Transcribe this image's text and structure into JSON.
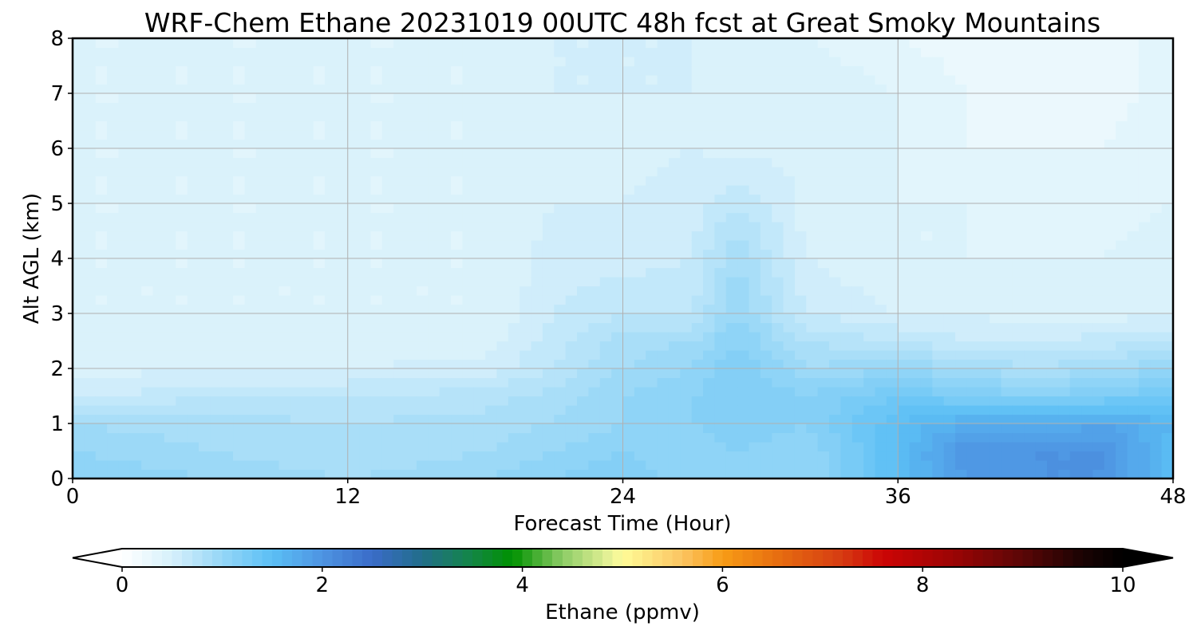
{
  "chart_data": {
    "type": "heatmap",
    "title": "WRF-Chem Ethane  20231019 00UTC 48h fcst at Great Smoky Mountains",
    "xlabel": "Forecast Time (Hour)",
    "ylabel": "Alt AGL (km)",
    "xlim": [
      0,
      48
    ],
    "ylim": [
      0,
      8
    ],
    "x_ticks": [
      0,
      12,
      24,
      36,
      48
    ],
    "y_ticks": [
      0,
      1,
      2,
      3,
      4,
      5,
      6,
      7,
      8
    ],
    "grid": true,
    "x": [
      0,
      6,
      12,
      18,
      21,
      24,
      27,
      29,
      32,
      36,
      39,
      42,
      45,
      48
    ],
    "y": [
      0,
      0.5,
      1,
      1.5,
      2,
      2.5,
      3,
      4,
      5,
      6,
      7,
      8
    ],
    "z": [
      [
        1.1,
        1.0,
        0.9,
        1.0,
        1.1,
        1.2,
        1.0,
        1.1,
        1.0,
        1.5,
        1.9,
        2.0,
        2.0,
        1.5
      ],
      [
        1.0,
        0.9,
        0.8,
        0.9,
        1.0,
        1.1,
        1.0,
        1.1,
        1.0,
        1.5,
        2.0,
        2.0,
        2.0,
        1.5
      ],
      [
        0.9,
        0.85,
        0.8,
        0.85,
        0.9,
        1.0,
        1.1,
        1.2,
        1.1,
        1.5,
        1.7,
        1.7,
        1.8,
        1.6
      ],
      [
        0.55,
        0.7,
        0.7,
        0.75,
        0.85,
        1.0,
        1.1,
        1.2,
        1.1,
        1.3,
        1.2,
        1.1,
        1.2,
        1.3
      ],
      [
        0.45,
        0.5,
        0.5,
        0.55,
        0.7,
        0.9,
        1.0,
        1.2,
        0.9,
        1.0,
        0.9,
        0.8,
        0.9,
        1.0
      ],
      [
        0.4,
        0.4,
        0.4,
        0.45,
        0.65,
        0.85,
        0.9,
        1.1,
        0.8,
        0.7,
        0.6,
        0.6,
        0.65,
        0.7
      ],
      [
        0.4,
        0.4,
        0.4,
        0.4,
        0.6,
        0.7,
        0.7,
        1.0,
        0.6,
        0.5,
        0.5,
        0.45,
        0.45,
        0.5
      ],
      [
        0.4,
        0.4,
        0.4,
        0.4,
        0.55,
        0.55,
        0.6,
        0.9,
        0.5,
        0.4,
        0.4,
        0.4,
        0.4,
        0.45
      ],
      [
        0.4,
        0.4,
        0.4,
        0.4,
        0.5,
        0.5,
        0.55,
        0.7,
        0.45,
        0.4,
        0.4,
        0.35,
        0.35,
        0.4
      ],
      [
        0.4,
        0.4,
        0.4,
        0.4,
        0.5,
        0.45,
        0.5,
        0.45,
        0.5,
        0.4,
        0.3,
        0.3,
        0.3,
        0.4
      ],
      [
        0.4,
        0.4,
        0.4,
        0.4,
        0.5,
        0.5,
        0.5,
        0.4,
        0.5,
        0.4,
        0.3,
        0.25,
        0.25,
        0.35
      ],
      [
        0.4,
        0.4,
        0.4,
        0.4,
        0.5,
        0.5,
        0.5,
        0.4,
        0.4,
        0.3,
        0.25,
        0.25,
        0.25,
        0.35
      ]
    ],
    "colorbar": {
      "label": "Ethane  (ppmv)",
      "min": 0,
      "max": 10,
      "ticks": [
        0,
        2,
        4,
        6,
        8,
        10
      ],
      "extend": "both",
      "orientation": "horizontal",
      "colors": [
        {
          "v": 0.0,
          "c": "#ffffff"
        },
        {
          "v": 0.5,
          "c": "#d6f0fb"
        },
        {
          "v": 1.0,
          "c": "#95d6f7"
        },
        {
          "v": 1.5,
          "c": "#5bbff5"
        },
        {
          "v": 2.0,
          "c": "#4e94e2"
        },
        {
          "v": 2.5,
          "c": "#3a6cc8"
        },
        {
          "v": 3.0,
          "c": "#226d8a"
        },
        {
          "v": 3.5,
          "c": "#138645"
        },
        {
          "v": 3.9,
          "c": "#009100"
        },
        {
          "v": 4.4,
          "c": "#8dcc66"
        },
        {
          "v": 4.9,
          "c": "#ecf49a"
        },
        {
          "v": 5.0,
          "c": "#fffc97"
        },
        {
          "v": 5.6,
          "c": "#fbc462"
        },
        {
          "v": 6.0,
          "c": "#f89c15"
        },
        {
          "v": 6.6,
          "c": "#e56a10"
        },
        {
          "v": 7.2,
          "c": "#d63b12"
        },
        {
          "v": 7.6,
          "c": "#cc0505"
        },
        {
          "v": 8.3,
          "c": "#9c0505"
        },
        {
          "v": 9.0,
          "c": "#5a0606"
        },
        {
          "v": 9.6,
          "c": "#1a0303"
        },
        {
          "v": 10.0,
          "c": "#000000"
        }
      ]
    }
  }
}
